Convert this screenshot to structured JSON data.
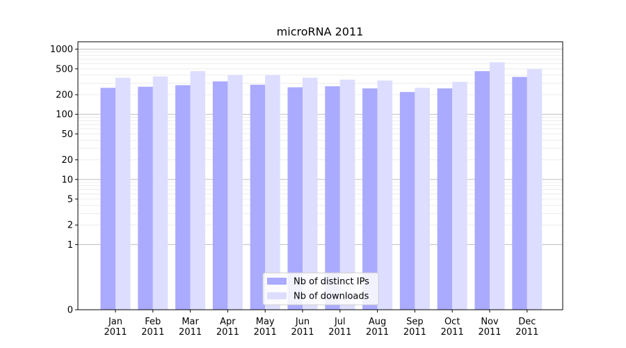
{
  "chart_data": {
    "type": "bar",
    "title": "microRNA 2011",
    "xlabel": "",
    "ylabel": "",
    "categories": [
      "Jan\n2011",
      "Feb\n2011",
      "Mar\n2011",
      "Apr\n2011",
      "May\n2011",
      "Jun\n2011",
      "Jul\n2011",
      "Aug\n2011",
      "Sep\n2011",
      "Oct\n2011",
      "Nov\n2011",
      "Dec\n2011"
    ],
    "series": [
      {
        "name": "Nb of distinct IPs",
        "color": "#aaaaff",
        "values": [
          255,
          265,
          280,
          320,
          285,
          260,
          270,
          250,
          220,
          250,
          460,
          375
        ]
      },
      {
        "name": "Nb of downloads",
        "color": "#ddddff",
        "values": [
          365,
          380,
          460,
          400,
          400,
          365,
          340,
          330,
          255,
          315,
          630,
          495
        ]
      }
    ],
    "y_scale": "symlog",
    "ylim": [
      0,
      1300
    ],
    "y_ticks": [
      0,
      1,
      2,
      5,
      10,
      20,
      50,
      100,
      200,
      500,
      1000
    ],
    "y_tick_labels": [
      "0",
      "1",
      "2",
      "5",
      "10",
      "20",
      "50",
      "100",
      "200",
      "500",
      "1000"
    ],
    "grid": true,
    "legend_position": "bottom-center"
  }
}
